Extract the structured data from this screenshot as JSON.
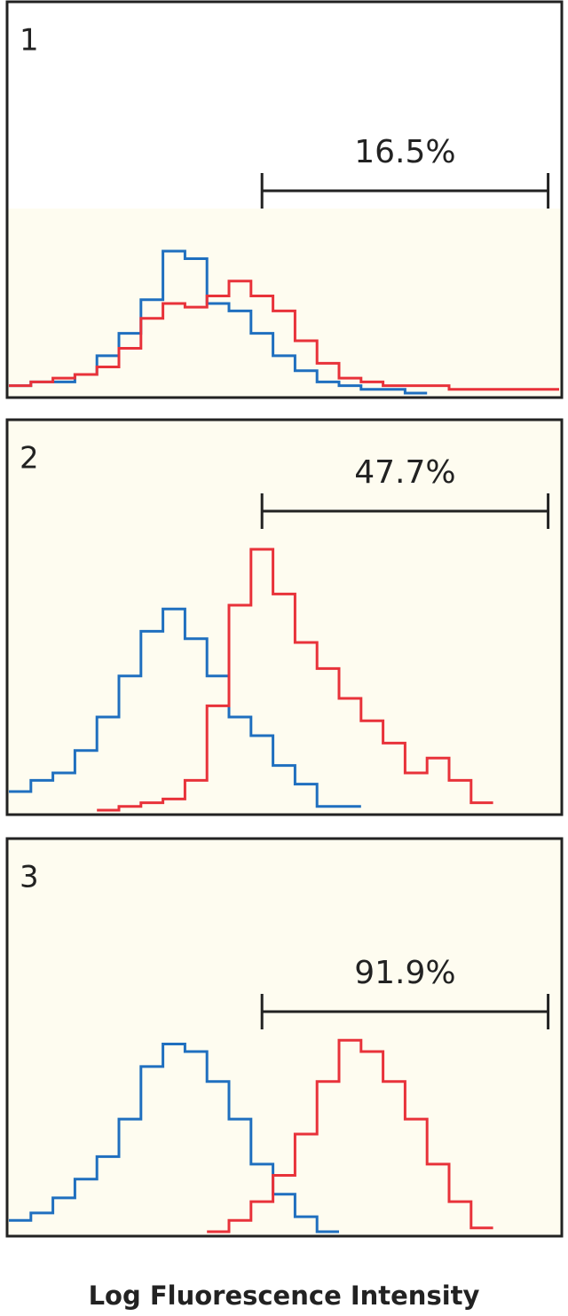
{
  "chart_data": [
    {
      "type": "line",
      "title": "1",
      "x": [
        0,
        4,
        8,
        12,
        16,
        20,
        24,
        28,
        32,
        36,
        40,
        44,
        48,
        52,
        56,
        60,
        64,
        68,
        72,
        76,
        80,
        84,
        88,
        92,
        96
      ],
      "xlim": [
        0,
        100
      ],
      "ylim": [
        0,
        100
      ],
      "series": [
        {
          "color": "#1f6fbf",
          "values": [
            2,
            3,
            3,
            5,
            10,
            16,
            25,
            38,
            36,
            24,
            22,
            16,
            10,
            6,
            3,
            2,
            1,
            1,
            0,
            null,
            null,
            null,
            null,
            null,
            null
          ]
        },
        {
          "color": "#e8323a",
          "values": [
            2,
            3,
            4,
            5,
            7,
            12,
            20,
            24,
            23,
            26,
            30,
            26,
            22,
            14,
            8,
            4,
            3,
            2,
            2,
            2,
            1,
            1,
            1,
            1,
            1
          ]
        }
      ],
      "gate": {
        "x": [
          46,
          98
        ],
        "label": "16.5%"
      }
    },
    {
      "type": "line",
      "title": "2",
      "x": [
        0,
        4,
        8,
        12,
        16,
        20,
        24,
        28,
        32,
        36,
        40,
        44,
        48,
        52,
        56,
        60,
        64,
        68,
        72,
        76,
        80,
        84,
        88,
        92,
        96
      ],
      "xlim": [
        0,
        100
      ],
      "ylim": [
        0,
        100
      ],
      "series": [
        {
          "color": "#1f6fbf",
          "values": [
            5,
            8,
            10,
            16,
            25,
            36,
            48,
            54,
            46,
            36,
            25,
            20,
            12,
            7,
            1,
            1,
            null,
            null,
            null,
            null,
            null,
            null,
            null,
            null,
            null
          ]
        },
        {
          "color": "#e8323a",
          "values": [
            null,
            null,
            null,
            null,
            0,
            1,
            2,
            3,
            8,
            28,
            55,
            70,
            58,
            45,
            38,
            30,
            24,
            18,
            10,
            14,
            8,
            2,
            null,
            null,
            null
          ]
        }
      ],
      "gate": {
        "x": [
          46,
          98
        ],
        "label": "47.7%"
      }
    },
    {
      "type": "line",
      "title": "3",
      "x": [
        0,
        4,
        8,
        12,
        16,
        20,
        24,
        28,
        32,
        36,
        40,
        44,
        48,
        52,
        56,
        60,
        64,
        68,
        72,
        76,
        80,
        84,
        88,
        92,
        96
      ],
      "xlim": [
        0,
        100
      ],
      "ylim": [
        0,
        100
      ],
      "series": [
        {
          "color": "#1f6fbf",
          "values": [
            3,
            5,
            9,
            14,
            20,
            30,
            44,
            50,
            48,
            40,
            30,
            18,
            10,
            4,
            0,
            null,
            null,
            null,
            null,
            null,
            null,
            null,
            null,
            null,
            null
          ]
        },
        {
          "color": "#e8323a",
          "values": [
            null,
            null,
            null,
            null,
            null,
            null,
            null,
            null,
            null,
            0,
            3,
            8,
            15,
            26,
            40,
            51,
            48,
            40,
            30,
            18,
            8,
            1,
            null,
            null,
            null
          ]
        }
      ],
      "gate": {
        "x": [
          46,
          98
        ],
        "label": "91.9%"
      },
      "xlabel": "Log Fluorescence Intensity"
    }
  ]
}
